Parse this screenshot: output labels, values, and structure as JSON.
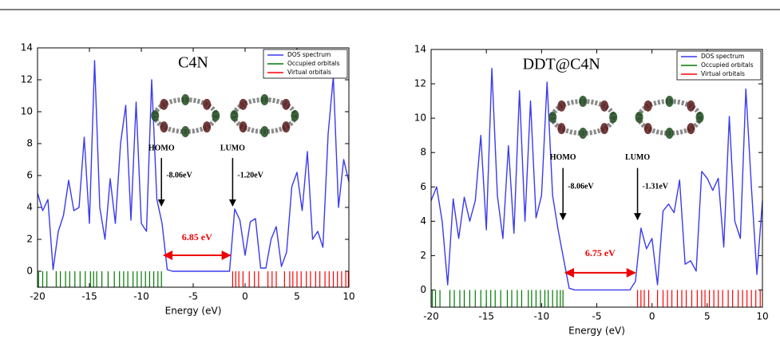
{
  "chart_data": [
    {
      "type": "line",
      "title": "C4N",
      "xlabel": "Energy (eV)",
      "xlim": [
        -20,
        10
      ],
      "ylim": [
        -1,
        14
      ],
      "xticks": [
        -20,
        -15,
        -10,
        -5,
        0,
        5,
        10
      ],
      "yticks": [
        0,
        2,
        4,
        6,
        8,
        10,
        12,
        14
      ],
      "legend": "upper right",
      "x": [
        -20,
        -19.5,
        -19,
        -18.5,
        -18,
        -17.5,
        -17,
        -16.5,
        -16,
        -15.5,
        -15,
        -14.5,
        -14,
        -13.5,
        -13,
        -12.5,
        -12,
        -11.5,
        -11,
        -10.5,
        -10,
        -9.5,
        -9,
        -8.5,
        -8,
        -7.5,
        -7,
        -6.5,
        -6,
        -5.5,
        -5,
        -4.5,
        -4,
        -3.5,
        -3,
        -2.5,
        -2,
        -1.5,
        -1,
        -0.5,
        0,
        0.5,
        1,
        1.5,
        2,
        2.5,
        3,
        3.5,
        4,
        4.5,
        5,
        5.5,
        6,
        6.5,
        7,
        7.5,
        8,
        8.5,
        9,
        9.5,
        10
      ],
      "series": [
        {
          "name": "DOS spectrum",
          "color": "#3a3af0",
          "values": [
            4.9,
            3.8,
            4.5,
            0.1,
            2.5,
            3.5,
            5.7,
            3.8,
            4.0,
            8.4,
            3.0,
            13.2,
            4.0,
            2.0,
            5.8,
            3.0,
            8.0,
            10.4,
            3.2,
            10.6,
            3.0,
            2.5,
            12.0,
            4.5,
            3.0,
            0.1,
            0,
            0,
            0,
            0,
            0,
            0,
            0,
            0,
            0,
            0,
            0,
            0,
            3.9,
            3.2,
            1.0,
            3.1,
            3.3,
            0.2,
            0.2,
            2.0,
            2.8,
            0.3,
            1.2,
            5.3,
            6.2,
            3.8,
            7.5,
            2.0,
            2.5,
            1.5,
            8.6,
            12.2,
            4.0,
            7.0,
            5.6
          ]
        },
        {
          "name": "Occupied orbitals",
          "color": "#007a00",
          "x": [
            -19.9,
            -19.5,
            -19.1,
            -18.2,
            -17.8,
            -17.3,
            -16.9,
            -16.4,
            -15.9,
            -15.4,
            -14.9,
            -14.6,
            -14.3,
            -13.8,
            -13.2,
            -12.6,
            -12.1,
            -11.7,
            -11.3,
            -10.8,
            -10.4,
            -10.0,
            -9.6,
            -9.2,
            -8.8,
            -8.4,
            -8.06
          ]
        },
        {
          "name": "Virtual orbitals",
          "color": "#ff0000",
          "x": [
            -1.2,
            -0.9,
            -0.6,
            -0.2,
            0.4,
            0.9,
            1.3,
            2.2,
            2.6,
            3.0,
            3.8,
            4.3,
            4.6,
            5.0,
            5.4,
            5.9,
            6.3,
            6.8,
            7.2,
            7.7,
            8.1,
            8.5,
            8.9,
            9.3,
            9.7,
            9.95
          ]
        }
      ],
      "annotations": {
        "homo": {
          "label": "HOMO",
          "energy": {
            "value": -8.06,
            "label": "-8.06eV"
          }
        },
        "lumo": {
          "label": "LUMO",
          "energy": {
            "value": -1.2,
            "label": "-1.20eV"
          }
        },
        "gap": {
          "value": 6.85,
          "label": "6.85 eV"
        }
      }
    },
    {
      "type": "line",
      "title": "DDT@C4N",
      "xlabel": "Energy (eV)",
      "xlim": [
        -20,
        10
      ],
      "ylim": [
        -1,
        14
      ],
      "xticks": [
        -20,
        -15,
        -10,
        -5,
        0,
        5,
        10
      ],
      "yticks": [
        0,
        2,
        4,
        6,
        8,
        10,
        12,
        14
      ],
      "legend": "upper right",
      "x": [
        -20,
        -19.5,
        -19,
        -18.5,
        -18,
        -17.5,
        -17,
        -16.5,
        -16,
        -15.5,
        -15,
        -14.5,
        -14,
        -13.5,
        -13,
        -12.5,
        -12,
        -11.5,
        -11,
        -10.5,
        -10,
        -9.5,
        -9,
        -8.5,
        -8,
        -7.5,
        -7,
        -6.5,
        -6,
        -5.5,
        -5,
        -4.5,
        -4,
        -3.5,
        -3,
        -2.5,
        -2,
        -1.5,
        -1,
        -0.5,
        0,
        0.5,
        1,
        1.5,
        2,
        2.5,
        3,
        3.5,
        4,
        4.5,
        5,
        5.5,
        6,
        6.5,
        7,
        7.5,
        8,
        8.5,
        9,
        9.5,
        10
      ],
      "series": [
        {
          "name": "DOS spectrum",
          "color": "#3a3af0",
          "values": [
            5.2,
            6.0,
            4.0,
            0.3,
            5.3,
            3.0,
            5.4,
            4.0,
            5.2,
            9.0,
            3.5,
            12.9,
            5.5,
            3.0,
            8.4,
            3.3,
            11.6,
            4.0,
            11.0,
            4.2,
            5.5,
            12.1,
            5.5,
            3.5,
            1.8,
            0.1,
            0,
            0,
            0,
            0,
            0,
            0,
            0,
            0,
            0,
            0,
            0,
            0.5,
            3.6,
            2.4,
            3.0,
            0.3,
            4.6,
            5.0,
            4.5,
            6.4,
            1.5,
            1.7,
            1.1,
            6.9,
            6.5,
            5.8,
            6.5,
            2.5,
            10.1,
            4.0,
            3.0,
            11.7,
            6.0,
            0.9,
            5.2
          ]
        },
        {
          "name": "Occupied orbitals",
          "color": "#007a00",
          "x": [
            -19.9,
            -19.6,
            -19.2,
            -18.3,
            -17.9,
            -17.4,
            -17.0,
            -16.5,
            -16.0,
            -15.5,
            -15.0,
            -14.6,
            -14.2,
            -13.7,
            -13.1,
            -12.7,
            -12.2,
            -11.8,
            -11.2,
            -10.9,
            -10.5,
            -10.1,
            -9.7,
            -9.4,
            -9.0,
            -8.6,
            -8.3,
            -8.06
          ]
        },
        {
          "name": "Virtual orbitals",
          "color": "#ff0000",
          "x": [
            -1.31,
            -1.0,
            -0.7,
            -0.3,
            0.5,
            1.0,
            1.4,
            1.8,
            2.3,
            2.7,
            3.1,
            3.6,
            4.1,
            4.5,
            4.8,
            5.2,
            5.6,
            6.0,
            6.4,
            6.9,
            7.3,
            7.8,
            8.2,
            8.6,
            9.0,
            9.4,
            9.8
          ]
        }
      ],
      "annotations": {
        "homo": {
          "label": "HOMO",
          "energy": {
            "value": -8.06,
            "label": "-8.06eV"
          }
        },
        "lumo": {
          "label": "LUMO",
          "energy": {
            "value": -1.31,
            "label": "-1.31eV"
          }
        },
        "gap": {
          "value": 6.75,
          "label": "6.75 eV"
        }
      }
    }
  ]
}
